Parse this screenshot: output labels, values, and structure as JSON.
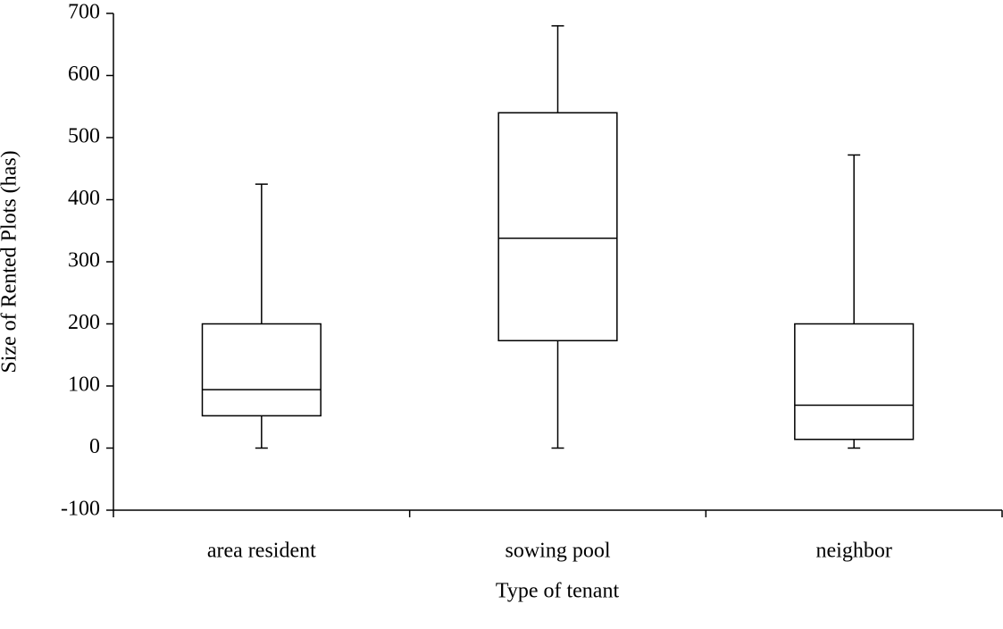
{
  "chart_data": {
    "type": "box",
    "x_label": "Type of tenant",
    "y_label": "Size of Rented Plots (has)",
    "categories": [
      "area resident",
      "sowing pool",
      "neighbor"
    ],
    "min": [
      0,
      0,
      0
    ],
    "q1": [
      52,
      173,
      14
    ],
    "median": [
      94,
      338,
      69
    ],
    "q3": [
      200,
      540,
      200
    ],
    "max": [
      425,
      680,
      472
    ],
    "color": "#000000",
    "ylim": [
      -100,
      700
    ],
    "yticks": [
      -100,
      0,
      100,
      200,
      300,
      400,
      500,
      600,
      700
    ],
    "grid": false
  }
}
